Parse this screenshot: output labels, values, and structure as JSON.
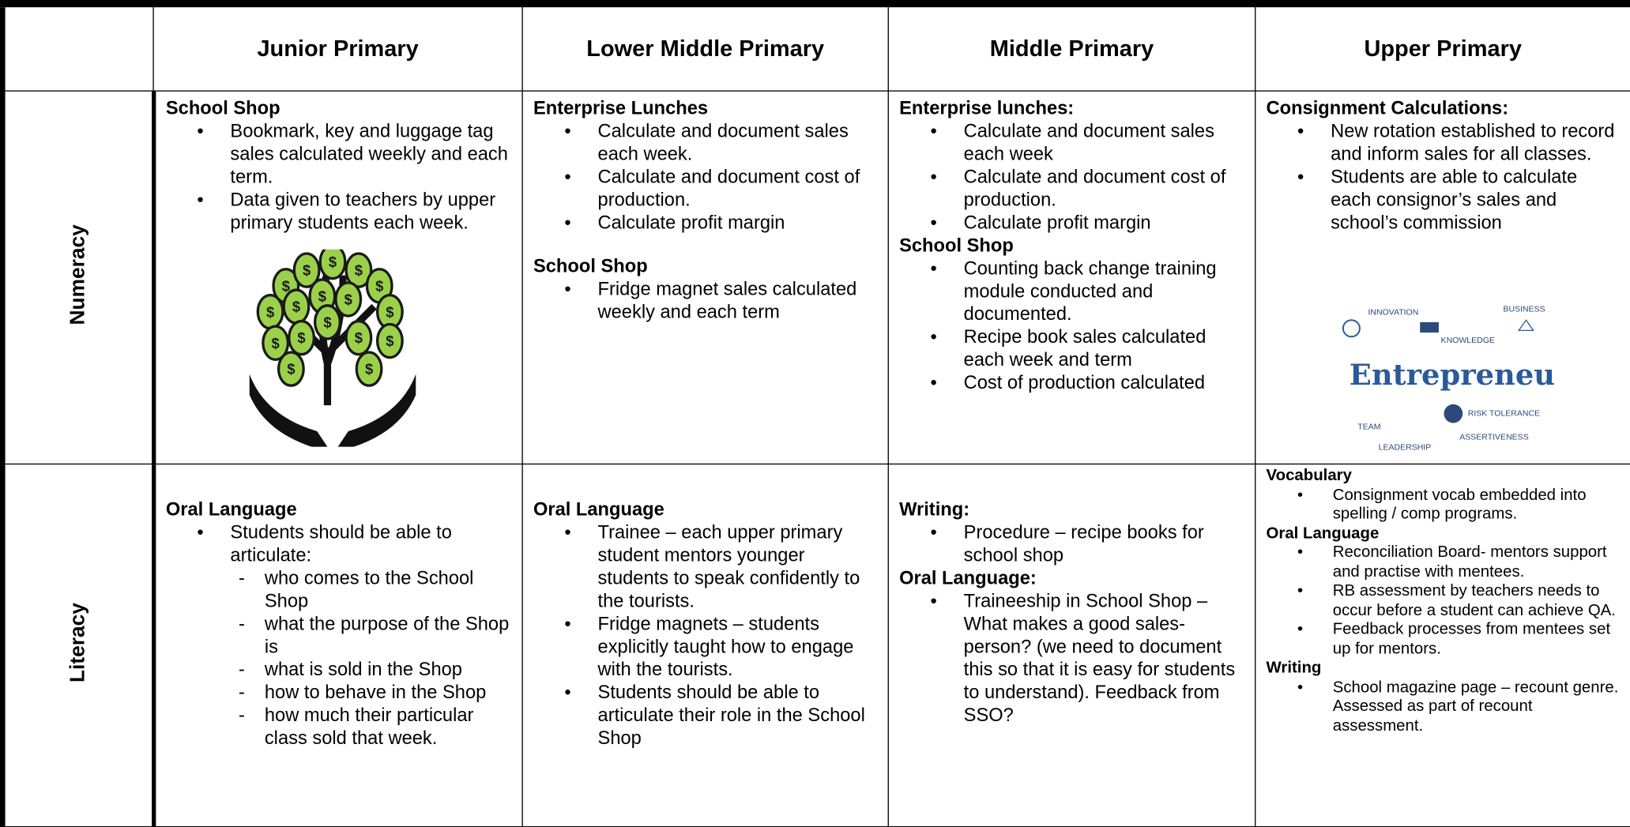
{
  "table": {
    "columns": [
      "Junior Primary",
      "Lower Middle Primary",
      "Middle Primary",
      "Upper Primary"
    ],
    "rows": [
      {
        "label": "Numeracy",
        "cells": [
          [
            {
              "heading": "School Shop",
              "items": [
                "Bookmark, key and luggage tag sales calculated weekly and each term.",
                "Data given to teachers by upper primary students each week."
              ]
            }
          ],
          [
            {
              "heading": "Enterprise Lunches",
              "items": [
                "Calculate and document sales each week.",
                "Calculate and document cost of production.",
                "Calculate profit margin"
              ]
            },
            {
              "heading": "School Shop",
              "items": [
                "Fridge magnet sales calculated weekly and each term"
              ]
            }
          ],
          [
            {
              "heading": "Enterprise lunches:",
              "items": [
                "Calculate and document sales each week",
                "Calculate and document cost of production.",
                "Calculate profit margin"
              ]
            },
            {
              "heading": "School Shop",
              "items": [
                "Counting back change training module conducted and documented.",
                "Recipe book sales calculated each week and term",
                "Cost of production calculated"
              ]
            }
          ],
          [
            {
              "heading": "Consignment Calculations:",
              "items": [
                "New rotation established to record and inform sales for all classes.",
                "Students are able to calculate each consignor’s sales and school’s commission"
              ]
            }
          ]
        ]
      },
      {
        "label": "Literacy",
        "cells": [
          [
            {
              "heading": "Oral Language",
              "items": [
                {
                  "text": "Students should be able to articulate:",
                  "sub": [
                    "who comes to the School Shop",
                    "what the purpose of the Shop is",
                    "what is sold in the Shop",
                    "how to behave in the Shop",
                    "how much their particular class sold that week."
                  ]
                }
              ]
            }
          ],
          [
            {
              "heading": "Oral Language",
              "items": [
                "Trainee – each upper primary student mentors younger students to speak confidently to the tourists.",
                "Fridge magnets – students explicitly taught how to engage with the tourists.",
                "Students should be able to articulate their role in the School Shop"
              ]
            }
          ],
          [
            {
              "heading": "Writing:",
              "items": [
                "Procedure – recipe books for school shop"
              ]
            },
            {
              "heading": "Oral Language:",
              "items": [
                "Traineeship in School Shop – What makes a good sales-person? (we need to document this so that it is easy for students to understand). Feedback from SSO?"
              ]
            }
          ],
          [
            {
              "heading": "Vocabulary",
              "items": [
                "Consignment vocab embedded into spelling / comp programs."
              ]
            },
            {
              "heading": "Oral Language",
              "items": [
                "Reconciliation Board- mentors support and practise with mentees.",
                "RB assessment by teachers needs to occur before a student can achieve QA.",
                "Feedback processes from mentees set up for mentors."
              ]
            },
            {
              "heading": "Writing",
              "items": [
                "School magazine page – recount genre. Assessed as part of recount assessment."
              ]
            }
          ]
        ]
      }
    ],
    "entrepreneur_image": {
      "title": "Entrepreneur",
      "labels": [
        "INNOVATION",
        "BUSINESS",
        "KNOWLEDGE",
        "RISK TOLERANCE",
        "TEAM",
        "LEADERSHIP",
        "ASSERTIVENESS"
      ]
    }
  }
}
